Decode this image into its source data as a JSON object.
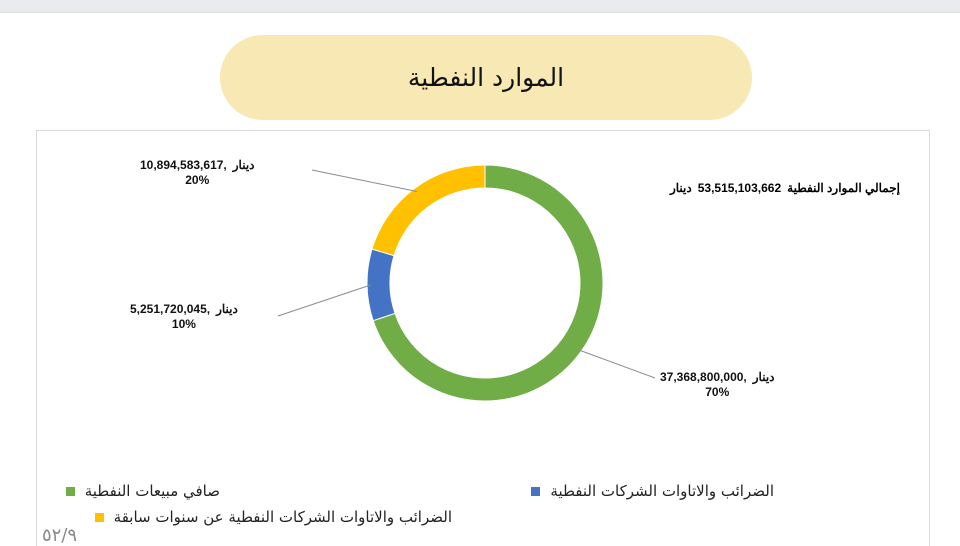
{
  "header": {
    "title": "الموارد النفطية"
  },
  "total": {
    "label": "إجمالي الموارد النفطية",
    "value": "53,515,103,662",
    "unit": "دينار"
  },
  "chart_data": {
    "type": "pie",
    "donut": true,
    "title": "الموارد النفطية",
    "categories": [
      "صافي مبيعات النفطية",
      "الضرائب والاتاوات الشركات النفطية",
      "الضرائب والاتاوات الشركات النفطية  عن سنوات سابقة"
    ],
    "values": [
      37368800000,
      5251720045,
      10894583617
    ],
    "percent_labels": [
      "70%",
      "10%",
      "20%"
    ],
    "value_labels": [
      "37,368,800,000",
      "5,251,720,045",
      "10,894,583,617"
    ],
    "unit": "دينار",
    "colors": [
      "#70ad47",
      "#4472c4",
      "#ffc000"
    ],
    "legend_position": "bottom"
  },
  "labels": {
    "green": {
      "value": "37,368,800,000,",
      "unit": "دينار",
      "pct": "70%"
    },
    "blue": {
      "value": "5,251,720,045,",
      "unit": "دينار",
      "pct": "10%"
    },
    "yellow": {
      "value": "10,894,583,617,",
      "unit": "دينار",
      "pct": "20%"
    }
  },
  "legend": {
    "green": "صافي مبيعات النفطية",
    "blue": "الضرائب والاتاوات الشركات النفطية",
    "yellow": "الضرائب والاتاوات الشركات النفطية  عن سنوات سابقة"
  },
  "page_number": "٥٢/٩"
}
